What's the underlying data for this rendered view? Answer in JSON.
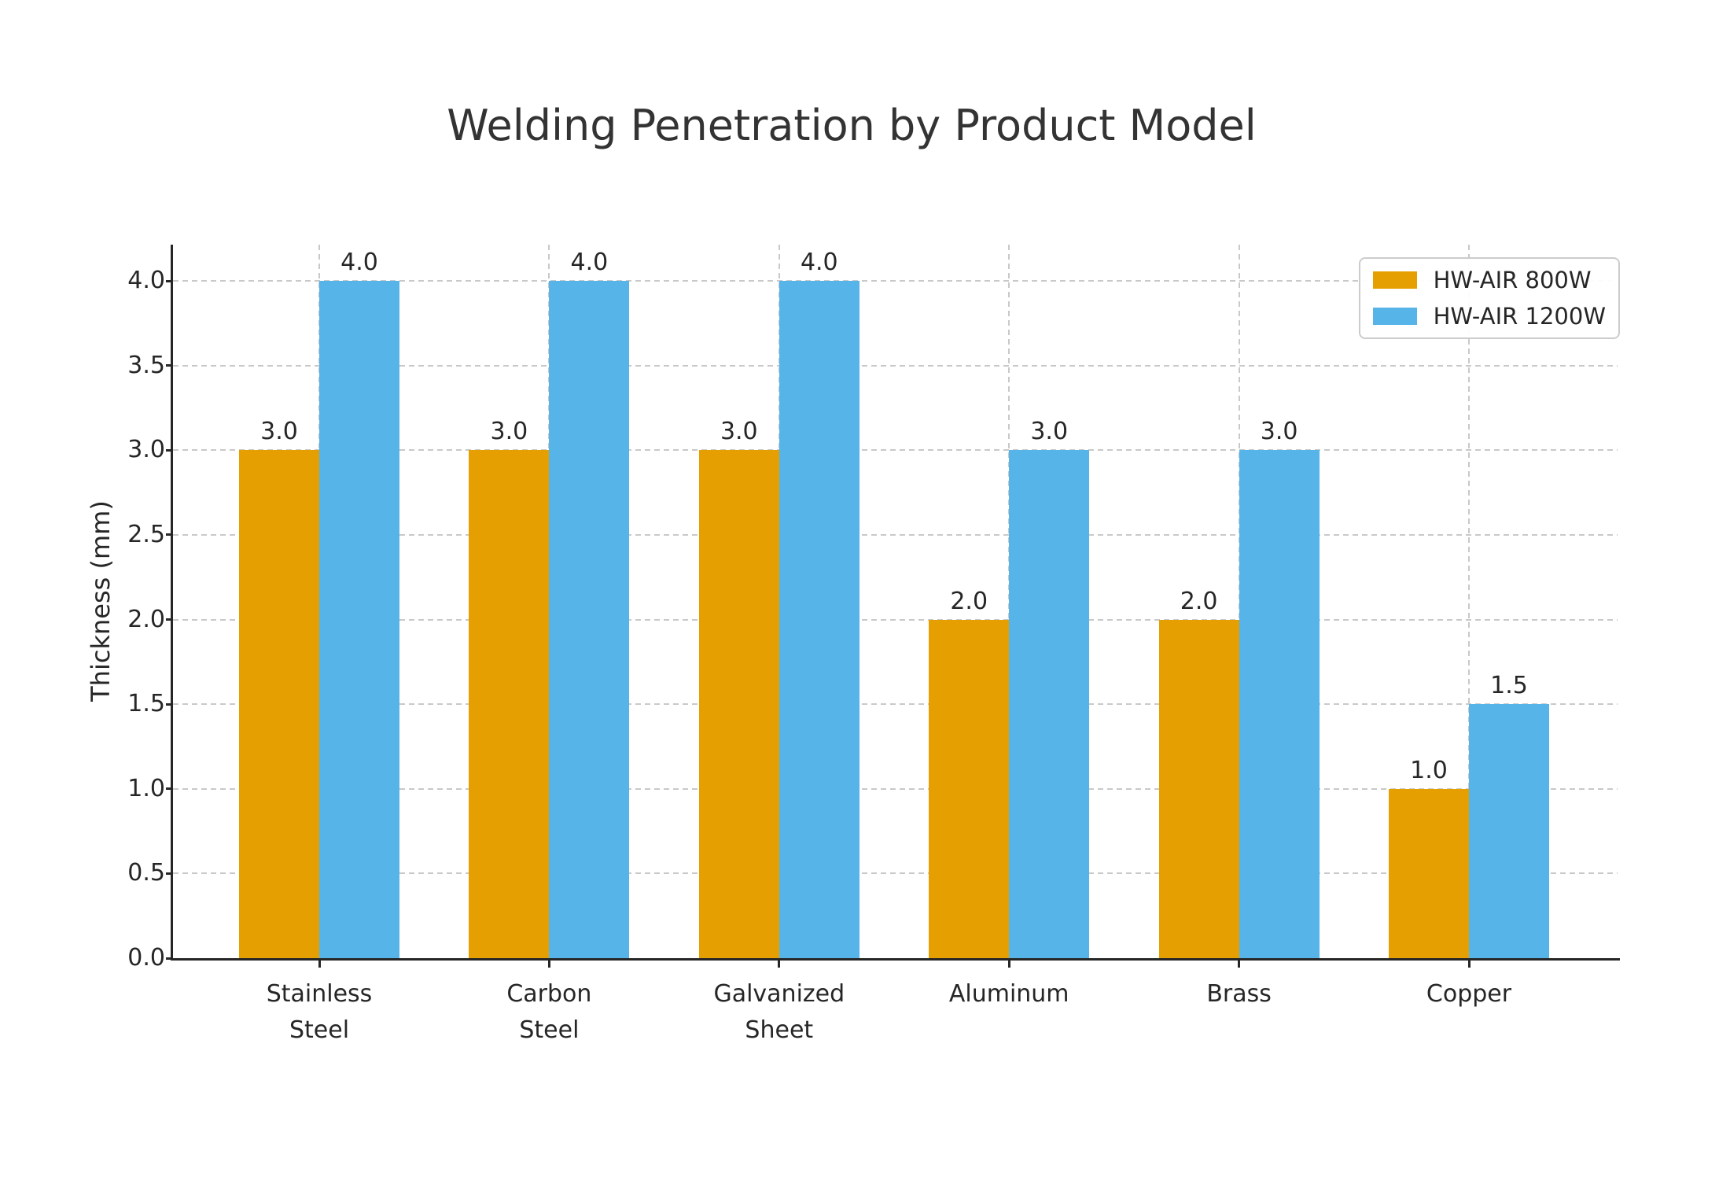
{
  "page": {
    "title": "Welding Penetration by Product Model"
  },
  "chart_data": {
    "type": "bar",
    "title": "Welding Penetration by Product Model",
    "ylabel": "Thickness (mm)",
    "xlabel": "",
    "categories": [
      "Stainless\nSteel",
      "Carbon\nSteel",
      "Galvanized\nSheet",
      "Aluminum",
      "Brass",
      "Copper"
    ],
    "series": [
      {
        "name": "HW-AIR 800W",
        "color": "#E69F00",
        "values": [
          3.0,
          3.0,
          3.0,
          2.0,
          2.0,
          1.0
        ]
      },
      {
        "name": "HW-AIR 1200W",
        "color": "#56B4E9",
        "values": [
          4.0,
          4.0,
          4.0,
          3.0,
          3.0,
          1.5
        ]
      }
    ],
    "yticks": [
      0.0,
      0.5,
      1.0,
      1.5,
      2.0,
      2.5,
      3.0,
      3.5,
      4.0
    ],
    "ylim": [
      0.0,
      4.21
    ],
    "grid": true,
    "grid_style": "dashed",
    "value_labels": true,
    "value_label_format": "one-decimal",
    "legend_position": "upper-right",
    "style": {
      "grid_color": "#c9c9c9",
      "axis_color": "#262626",
      "text_color": "#262626",
      "title_color": "#333333",
      "background": "#ffffff"
    }
  }
}
